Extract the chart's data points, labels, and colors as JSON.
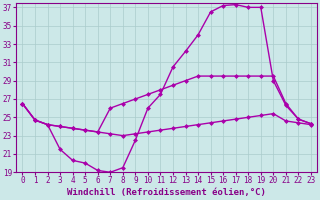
{
  "xlabel": "Windchill (Refroidissement éolien,°C)",
  "bg_color": "#cce8e8",
  "grid_color": "#aacccc",
  "line_color": "#aa00aa",
  "xlim": [
    -0.5,
    23.5
  ],
  "ylim": [
    19,
    37.5
  ],
  "xticks": [
    0,
    1,
    2,
    3,
    4,
    5,
    6,
    7,
    8,
    9,
    10,
    11,
    12,
    13,
    14,
    15,
    16,
    17,
    18,
    19,
    20,
    21,
    22,
    23
  ],
  "yticks": [
    19,
    21,
    23,
    25,
    27,
    29,
    31,
    33,
    35,
    37
  ],
  "line1_x": [
    0,
    1,
    2,
    3,
    4,
    5,
    6,
    7,
    8,
    9,
    10,
    11,
    12,
    13,
    14,
    15,
    16,
    17,
    18,
    19,
    20,
    21,
    22,
    23
  ],
  "line1_y": [
    26.5,
    24.7,
    24.2,
    21.5,
    20.3,
    20.0,
    19.2,
    19.0,
    19.5,
    22.5,
    26.0,
    27.5,
    30.5,
    32.2,
    34.0,
    36.5,
    37.2,
    37.3,
    37.0,
    37.0,
    29.0,
    26.3,
    24.8,
    24.3
  ],
  "line2_x": [
    0,
    1,
    2,
    3,
    4,
    5,
    6,
    7,
    8,
    9,
    10,
    11,
    12,
    13,
    14,
    15,
    16,
    17,
    18,
    19,
    20,
    21,
    22,
    23
  ],
  "line2_y": [
    26.5,
    24.7,
    24.2,
    24.0,
    23.8,
    23.6,
    23.4,
    26.0,
    26.5,
    27.0,
    27.5,
    28.0,
    28.5,
    29.0,
    29.5,
    29.5,
    29.5,
    29.5,
    29.5,
    29.5,
    29.5,
    26.5,
    24.8,
    24.3
  ],
  "line3_x": [
    0,
    1,
    2,
    3,
    4,
    5,
    6,
    7,
    8,
    9,
    10,
    11,
    12,
    13,
    14,
    15,
    16,
    17,
    18,
    19,
    20,
    21,
    22,
    23
  ],
  "line3_y": [
    26.5,
    24.7,
    24.2,
    24.0,
    23.8,
    23.6,
    23.4,
    23.2,
    23.0,
    23.2,
    23.4,
    23.6,
    23.8,
    24.0,
    24.2,
    24.4,
    24.6,
    24.8,
    25.0,
    25.2,
    25.4,
    24.6,
    24.4,
    24.2
  ],
  "marker": "D",
  "marker_size": 2.5,
  "line_width": 1.0,
  "xlabel_fontsize": 6.5,
  "tick_fontsize": 5.5,
  "tick_color": "#880088",
  "axis_color": "#880088"
}
